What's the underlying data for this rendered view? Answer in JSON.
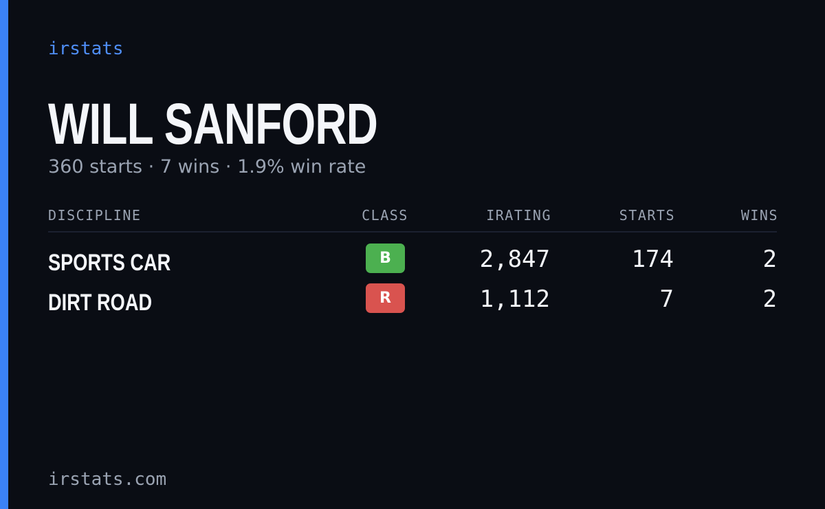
{
  "brand": "irstats",
  "driver": {
    "name": "WILL SANFORD",
    "summary": "360 starts · 7 wins · 1.9% win rate"
  },
  "table": {
    "headers": [
      "DISCIPLINE",
      "CLASS",
      "IRATING",
      "STARTS",
      "WINS"
    ],
    "rows": [
      {
        "discipline": "SPORTS CAR",
        "class": "B",
        "class_color": "#4cb050",
        "irating": "2,847",
        "starts": "174",
        "wins": "2"
      },
      {
        "discipline": "DIRT ROAD",
        "class": "R",
        "class_color": "#d9534f",
        "irating": "1,112",
        "starts": "7",
        "wins": "2"
      }
    ]
  },
  "footer": "irstats.com"
}
